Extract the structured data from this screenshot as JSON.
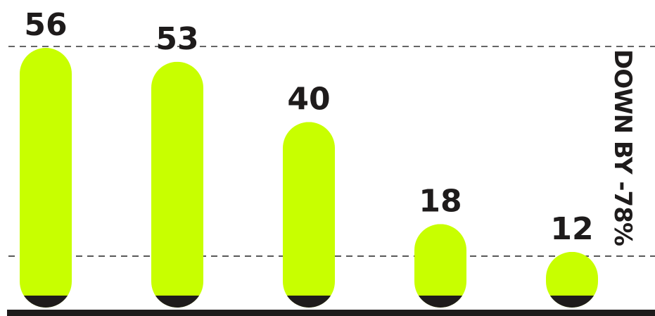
{
  "chart_data": {
    "type": "bar",
    "values": [
      56,
      53,
      40,
      18,
      12
    ],
    "ylim": [
      0,
      58
    ],
    "reference_lines": [
      {
        "value": 56
      },
      {
        "value": 12
      }
    ],
    "annotation": "DOWN BY -78%"
  },
  "colors": {
    "bar": "#c8ff00",
    "bar_cap": "#1e1b1b",
    "baseline": "#1e1b1b",
    "dashed_line": "#333333",
    "label": "#1e1b1b"
  }
}
